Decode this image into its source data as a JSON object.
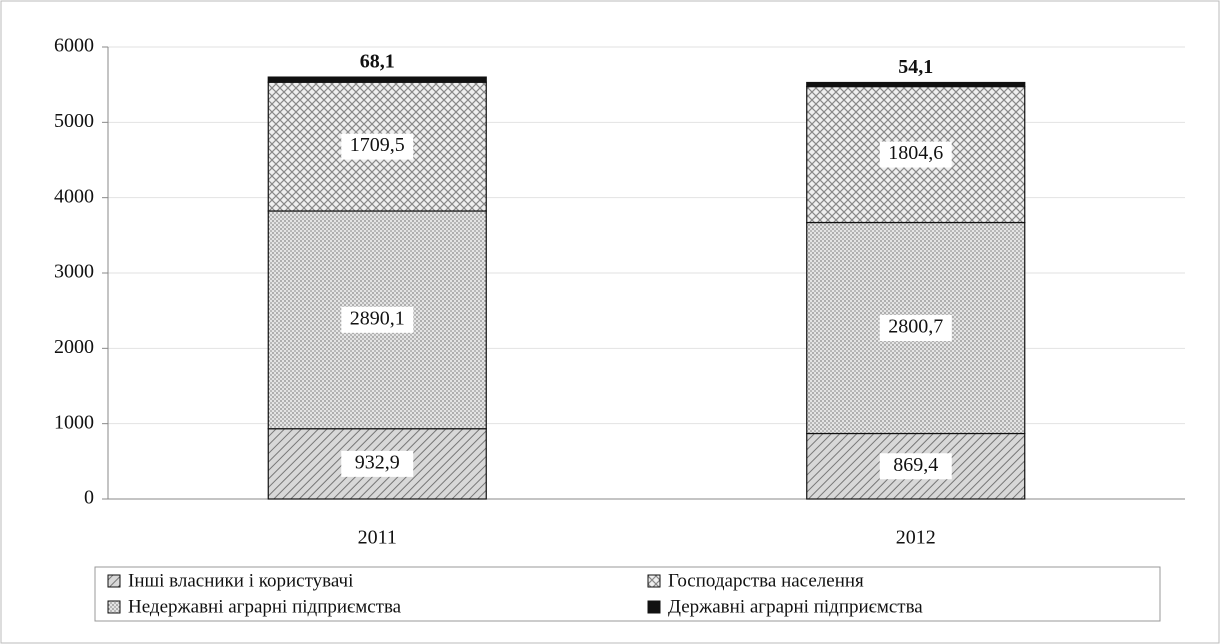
{
  "chart_data": {
    "type": "bar",
    "categories": [
      "2011",
      "2012"
    ],
    "series": [
      {
        "name": "Інші власники і користувачі",
        "color": "#9a9a9a",
        "values": [
          932.9,
          869.4
        ],
        "value_labels": [
          "932,9",
          "869,4"
        ]
      },
      {
        "name": "Недержавні аграрні підприємства",
        "color": "#c8c8c8",
        "values": [
          2890.1,
          2800.7
        ],
        "value_labels": [
          "2890,1",
          "2800,7"
        ]
      },
      {
        "name": "Господарства населення",
        "color": "#a0a0a0",
        "values": [
          1709.5,
          1804.6
        ],
        "value_labels": [
          "1709,5",
          "1804,6"
        ]
      },
      {
        "name": "Державні аграрні підприємства",
        "color": "#111111",
        "values": [
          68.1,
          54.1
        ],
        "value_labels": [
          "68,1",
          "54,1"
        ]
      }
    ],
    "ylim": [
      0,
      6000
    ],
    "yticks": [
      0,
      1000,
      2000,
      3000,
      4000,
      5000,
      6000
    ],
    "grid": true
  }
}
